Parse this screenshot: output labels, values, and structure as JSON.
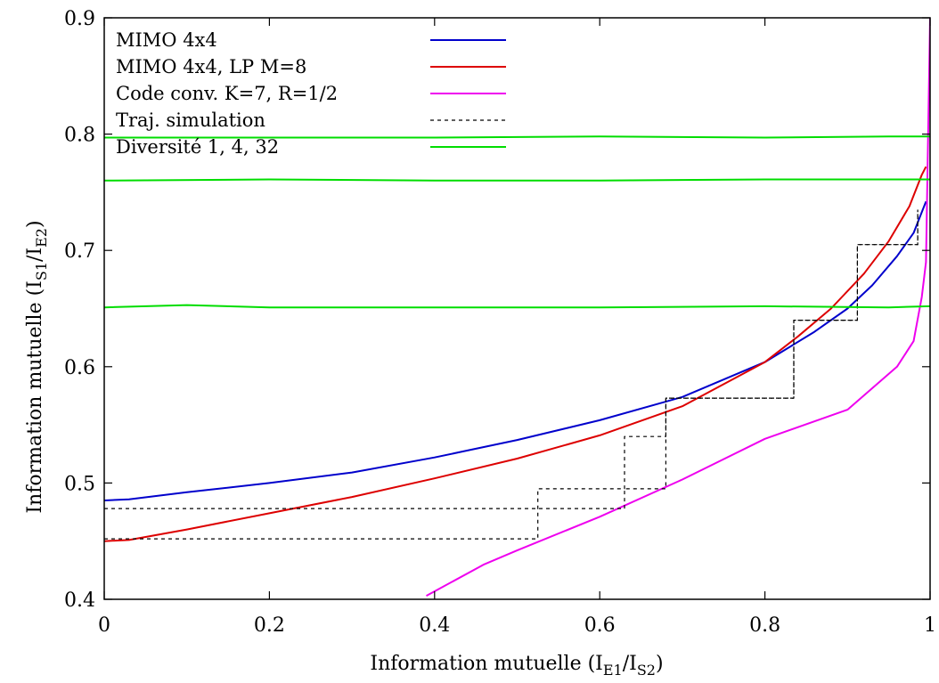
{
  "chart_data": {
    "type": "line",
    "xlabel": {
      "main": "Information mutuelle (I",
      "sub1": "E1",
      "mid": "/I",
      "sub2": "S2",
      "close": ")"
    },
    "ylabel": {
      "main": "Information mutuelle (I",
      "sub1": "S1",
      "mid": "/I",
      "sub2": "E2",
      "close": ")"
    },
    "xlim": [
      0,
      1
    ],
    "ylim": [
      0.4,
      0.9
    ],
    "xticks": [
      "0",
      "0.2",
      "0.4",
      "0.6",
      "0.8",
      "1"
    ],
    "yticks": [
      "0.4",
      "0.5",
      "0.6",
      "0.7",
      "0.8",
      "0.9"
    ],
    "grid": false,
    "legend_position": "top-left",
    "series": [
      {
        "name": "MIMO 4x4",
        "color": "#0000cc",
        "dash": "solid",
        "x": [
          0.0,
          0.03,
          0.1,
          0.2,
          0.3,
          0.4,
          0.5,
          0.6,
          0.7,
          0.8,
          0.86,
          0.9,
          0.93,
          0.96,
          0.98,
          0.995
        ],
        "y": [
          0.485,
          0.486,
          0.492,
          0.5,
          0.509,
          0.522,
          0.537,
          0.554,
          0.574,
          0.604,
          0.63,
          0.65,
          0.67,
          0.695,
          0.715,
          0.742
        ]
      },
      {
        "name": "MIMO 4x4, LP M=8",
        "color": "#dd0000",
        "dash": "solid",
        "x": [
          0.0,
          0.03,
          0.1,
          0.2,
          0.3,
          0.4,
          0.5,
          0.6,
          0.7,
          0.8,
          0.84,
          0.88,
          0.92,
          0.95,
          0.975,
          0.99,
          0.995
        ],
        "y": [
          0.45,
          0.451,
          0.46,
          0.474,
          0.488,
          0.504,
          0.521,
          0.541,
          0.566,
          0.604,
          0.626,
          0.65,
          0.68,
          0.708,
          0.738,
          0.765,
          0.772
        ]
      },
      {
        "name": "Code conv. K=7, R=1/2",
        "color": "#ee00ee",
        "dash": "solid",
        "x": [
          0.39,
          0.46,
          0.5,
          0.6,
          0.7,
          0.8,
          0.9,
          0.96,
          0.98,
          0.99,
          0.995,
          1.0
        ],
        "y": [
          0.403,
          0.43,
          0.442,
          0.471,
          0.503,
          0.538,
          0.563,
          0.6,
          0.622,
          0.66,
          0.69,
          0.9
        ]
      },
      {
        "name": "Traj. simulation",
        "color": "#000000",
        "dash": "dashed",
        "x": [
          0.0,
          0.525,
          0.525,
          0.63,
          0.63,
          0.68,
          0.68,
          0.835,
          0.835,
          0.912,
          0.912,
          0.985,
          0.985
        ],
        "y": [
          0.452,
          0.452,
          0.495,
          0.495,
          0.54,
          0.54,
          0.573,
          0.573,
          0.64,
          0.64,
          0.705,
          0.705,
          0.735
        ],
        "x2": [
          0.0,
          0.63,
          0.63,
          0.68,
          0.68,
          0.835,
          0.835,
          0.912,
          0.912,
          0.985,
          0.985
        ],
        "y2": [
          0.478,
          0.478,
          0.495,
          0.495,
          0.573,
          0.573,
          0.64,
          0.64,
          0.705,
          0.705,
          0.735
        ]
      },
      {
        "name": "Diversité 1, 4, 32",
        "color": "#00dd00",
        "dash": "solid",
        "lines": [
          {
            "x": [
              0.0,
              0.2,
              0.4,
              0.6,
              0.8,
              0.95,
              1.0
            ],
            "y": [
              0.797,
              0.797,
              0.797,
              0.798,
              0.797,
              0.798,
              0.798
            ]
          },
          {
            "x": [
              0.0,
              0.2,
              0.4,
              0.6,
              0.8,
              0.95,
              1.0
            ],
            "y": [
              0.76,
              0.761,
              0.76,
              0.76,
              0.761,
              0.761,
              0.761
            ]
          },
          {
            "x": [
              0.0,
              0.1,
              0.2,
              0.4,
              0.6,
              0.8,
              0.95,
              1.0
            ],
            "y": [
              0.651,
              0.653,
              0.651,
              0.651,
              0.651,
              0.652,
              0.651,
              0.652
            ]
          }
        ]
      }
    ]
  }
}
